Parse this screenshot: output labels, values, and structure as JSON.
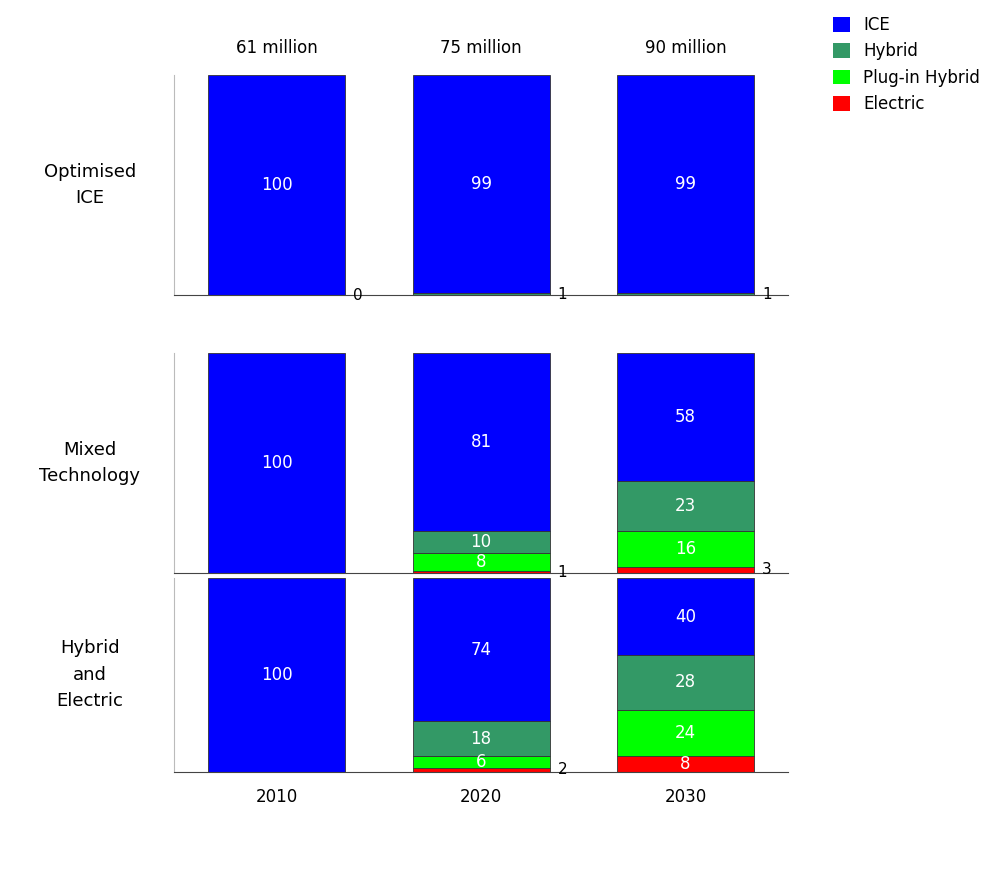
{
  "chart_data": [
    {
      "type": "bar",
      "title": "Optimised\nICE",
      "stacked": true,
      "data_labels": true,
      "tick_labels": false,
      "legend": "upper right",
      "annotations": [
        "61 million",
        "75 million",
        "90 million"
      ],
      "categories": [
        "2010",
        "2020",
        "2030"
      ],
      "ylim": [
        0,
        100
      ],
      "yticks": [],
      "series": [
        {
          "name": "ICE",
          "color": "#0000FF",
          "values": [
            100,
            99,
            99
          ]
        },
        {
          "name": "Hybrid",
          "color": "#339966",
          "values": [
            0,
            1,
            1
          ]
        },
        {
          "name": "Plug-in Hybrid",
          "color": "#00FF00",
          "values": [
            null,
            null,
            null
          ]
        },
        {
          "name": "Electric",
          "color": "#FF0000",
          "values": [
            null,
            null,
            null
          ]
        }
      ]
    },
    {
      "type": "bar",
      "title": "Mixed\nTechnology",
      "stacked": true,
      "data_labels": true,
      "tick_labels": false,
      "categories": [
        "2010",
        "2020",
        "2030"
      ],
      "ylim": [
        0,
        100
      ],
      "yticks": [],
      "series": [
        {
          "name": "ICE",
          "color": "#0000FF",
          "values": [
            100,
            81,
            58
          ]
        },
        {
          "name": "Hybrid",
          "color": "#339966",
          "values": [
            null,
            10,
            23
          ]
        },
        {
          "name": "Plug-in Hybrid",
          "color": "#00FF00",
          "values": [
            null,
            8,
            16
          ]
        },
        {
          "name": "Electric",
          "color": "#FF0000",
          "values": [
            null,
            1,
            3
          ]
        }
      ]
    },
    {
      "type": "bar",
      "title": "Hybrid\nand\nElectric",
      "stacked": true,
      "data_labels": true,
      "tick_labels": "x",
      "categories": [
        "2010",
        "2020",
        "2030"
      ],
      "ylim": [
        0,
        100
      ],
      "yticks": [],
      "series": [
        {
          "name": "ICE",
          "color": "#0000FF",
          "values": [
            100,
            74,
            40
          ]
        },
        {
          "name": "Hybrid",
          "color": "#339966",
          "values": [
            null,
            18,
            28
          ]
        },
        {
          "name": "Plug-in Hybrid",
          "color": "#00FF00",
          "values": [
            null,
            6,
            24
          ]
        },
        {
          "name": "Electric",
          "color": "#FF0000",
          "values": [
            null,
            2,
            8
          ]
        }
      ]
    }
  ]
}
